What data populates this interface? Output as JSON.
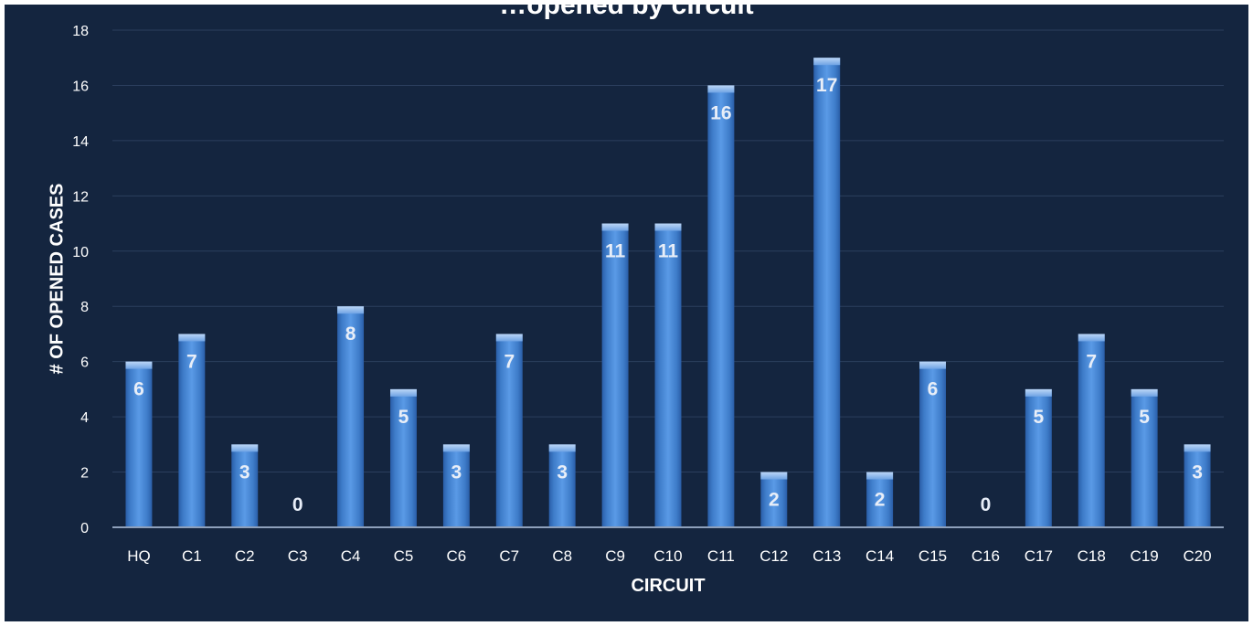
{
  "chart_data": {
    "type": "bar",
    "title": "…opened by circuit",
    "xlabel": "CIRCUIT",
    "ylabel": "# OF OPENED CASES",
    "categories": [
      "HQ",
      "C1",
      "C2",
      "C3",
      "C4",
      "C5",
      "C6",
      "C7",
      "C8",
      "C9",
      "C10",
      "C11",
      "C12",
      "C13",
      "C14",
      "C15",
      "C16",
      "C17",
      "C18",
      "C19",
      "C20"
    ],
    "values": [
      6,
      7,
      3,
      0,
      8,
      5,
      3,
      7,
      3,
      11,
      11,
      16,
      2,
      17,
      2,
      6,
      0,
      5,
      7,
      5,
      3
    ],
    "ylim": [
      0,
      18
    ],
    "yticks": [
      0,
      2,
      4,
      6,
      8,
      10,
      12,
      14,
      16,
      18
    ],
    "grid": true,
    "colors": {
      "background": "#14253f",
      "bar": "#4a88d6",
      "gridline": "#2b3f5e",
      "text": "#ffffff"
    }
  }
}
